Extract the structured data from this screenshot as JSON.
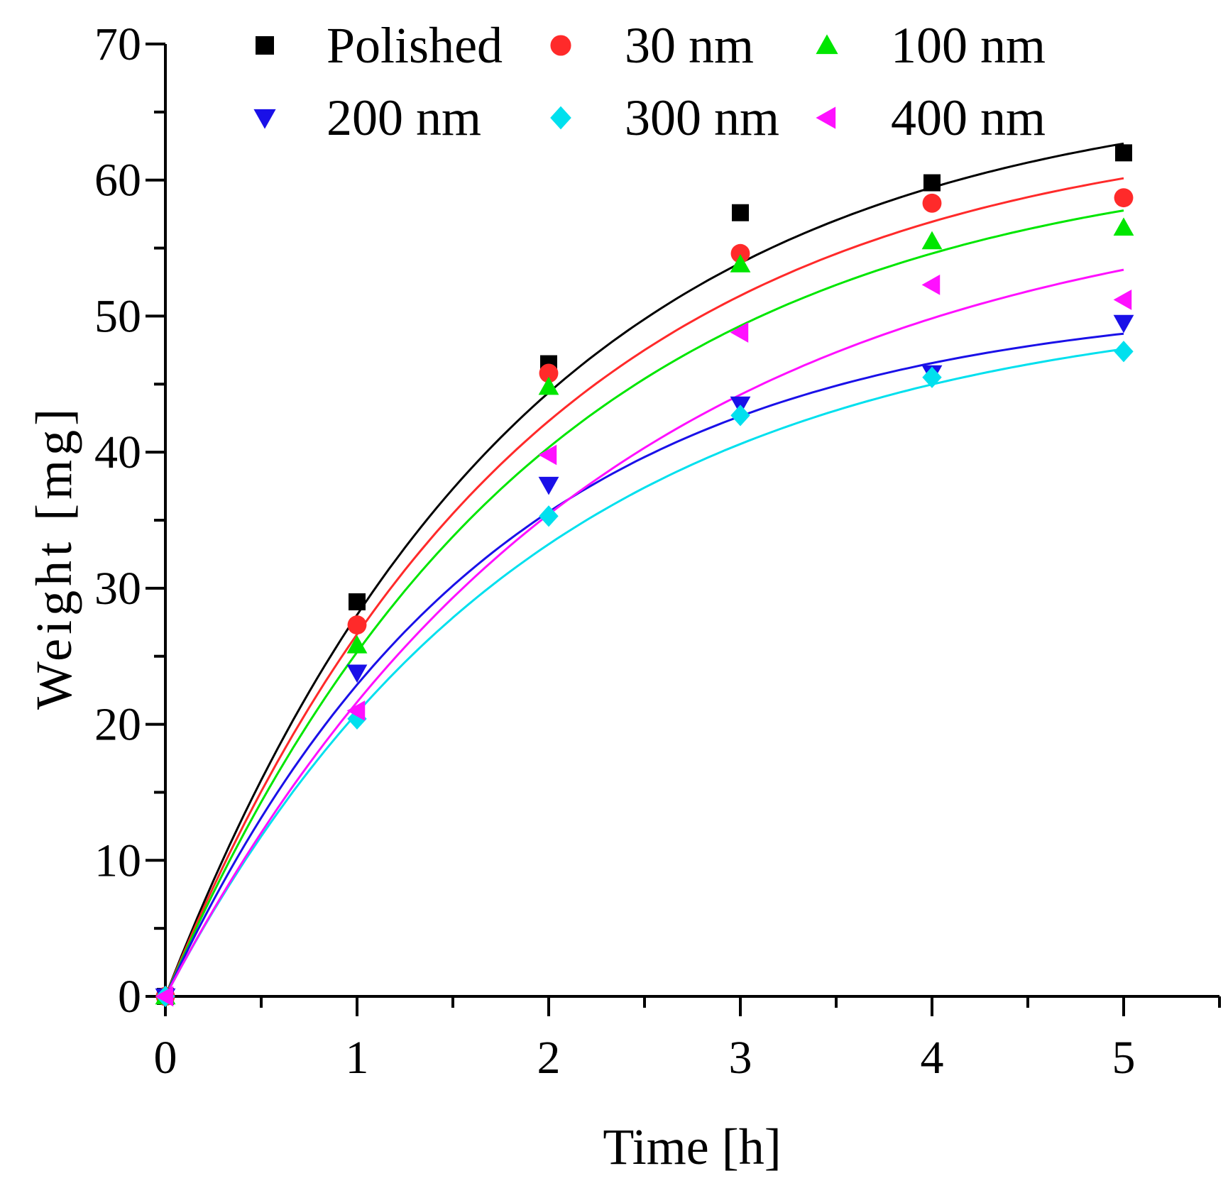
{
  "chart_data": {
    "type": "scatter",
    "xlabel": "Time [h]",
    "ylabel": "Weight [mg]",
    "xlim": [
      0,
      5.5
    ],
    "ylim": [
      0,
      70
    ],
    "x_ticks": [
      "0",
      "1",
      "2",
      "3",
      "4",
      "5"
    ],
    "y_ticks": [
      "0",
      "10",
      "20",
      "30",
      "40",
      "50",
      "60",
      "70"
    ],
    "legend_position": "top",
    "fit_curves": true,
    "series": [
      {
        "name": "Polished",
        "marker": "square",
        "color": "#000000",
        "x": [
          0,
          1,
          2,
          3,
          4,
          5
        ],
        "y": [
          0,
          29.0,
          46.5,
          57.6,
          59.8,
          62.0
        ],
        "fit": {
          "a": 67.2,
          "k": 0.54
        }
      },
      {
        "name": "30 nm",
        "marker": "circle",
        "color": "#ff2a2a",
        "x": [
          0,
          1,
          2,
          3,
          4,
          5
        ],
        "y": [
          0,
          27.3,
          45.8,
          54.6,
          58.3,
          58.7
        ],
        "fit": {
          "a": 64.7,
          "k": 0.53
        }
      },
      {
        "name": "100 nm",
        "marker": "triangle-up",
        "color": "#00e600",
        "x": [
          0,
          1,
          2,
          3,
          4,
          5
        ],
        "y": [
          0,
          25.8,
          44.8,
          53.8,
          55.5,
          56.5
        ],
        "fit": {
          "a": 62.4,
          "k": 0.52
        }
      },
      {
        "name": "200 nm",
        "marker": "triangle-down",
        "color": "#1a10e8",
        "x": [
          0,
          1,
          2,
          3,
          4,
          5
        ],
        "y": [
          0,
          23.8,
          37.6,
          43.5,
          45.8,
          49.5
        ],
        "fit": {
          "a": 51.4,
          "k": 0.59
        }
      },
      {
        "name": "300 nm",
        "marker": "diamond",
        "color": "#00e0ee",
        "x": [
          0,
          1,
          2,
          3,
          4,
          5
        ],
        "y": [
          0,
          20.4,
          35.3,
          42.7,
          45.5,
          47.4
        ],
        "fit": {
          "a": 51.4,
          "k": 0.52
        }
      },
      {
        "name": "400 nm",
        "marker": "triangle-left",
        "color": "#ff10ff",
        "x": [
          0,
          1,
          2,
          3,
          4,
          5
        ],
        "y": [
          0,
          21.0,
          39.8,
          48.8,
          52.3,
          51.2
        ],
        "fit": {
          "a": 59.7,
          "k": 0.45
        }
      }
    ]
  }
}
